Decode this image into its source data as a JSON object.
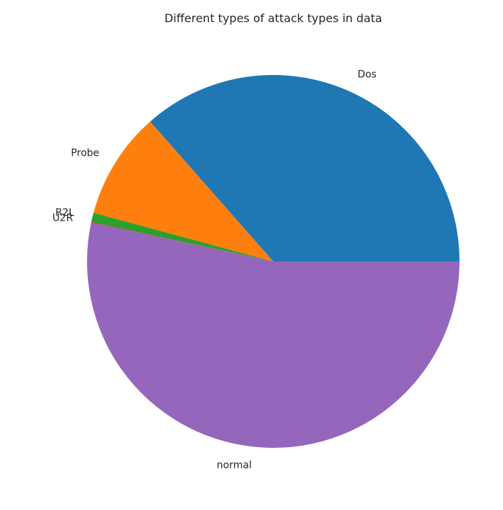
{
  "chart_data": {
    "type": "pie",
    "title": "Different types of attack types in data",
    "slices": [
      {
        "label": "Dos",
        "value": 36.5,
        "color": "#1f77b4"
      },
      {
        "label": "Probe",
        "value": 9.3,
        "color": "#ff7f0e"
      },
      {
        "label": "R2L",
        "value": 0.8,
        "color": "#2ca02c"
      },
      {
        "label": "U2R",
        "value": 0.05,
        "color": "#d62728"
      },
      {
        "label": "normal",
        "value": 53.35,
        "color": "#9467bd"
      }
    ],
    "start_angle_deg": 0,
    "direction": "counterclockwise",
    "legend": "none"
  }
}
